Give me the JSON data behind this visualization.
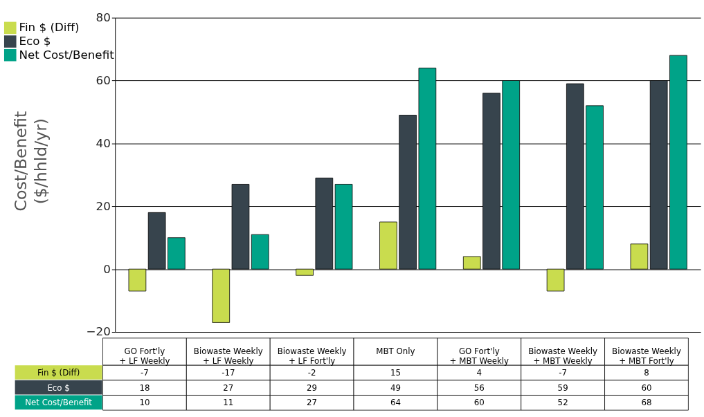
{
  "chart_data": {
    "type": "bar",
    "ylabel": "Cost/Benefit ($/hhld/yr)",
    "categories": [
      "GO Fort'ly + LF Weekly",
      "Biowaste Weekly + LF Weekly",
      "Biowaste Weekly + LF Fort'ly",
      "MBT Only",
      "GO Fort'ly + MBT Weekly",
      "Biowaste Weekly + MBT Weekly",
      "Biowaste Weekly + MBT Fort'ly"
    ],
    "series": [
      {
        "name": "Fin $ (Diff)",
        "color": "#c9dc4e",
        "values": [
          -7,
          -17,
          -2,
          15,
          4,
          -7,
          8
        ]
      },
      {
        "name": "Eco $",
        "color": "#37444d",
        "values": [
          18,
          27,
          29,
          49,
          56,
          59,
          60
        ]
      },
      {
        "name": "Net Cost/Benefit",
        "color": "#00a388",
        "values": [
          10,
          11,
          27,
          64,
          60,
          52,
          68
        ]
      }
    ],
    "ylim": [
      -20,
      80
    ],
    "yticks": [
      -20,
      0,
      20,
      40,
      60,
      80
    ],
    "grid": "y",
    "legend": "top left",
    "data_labels": true
  }
}
